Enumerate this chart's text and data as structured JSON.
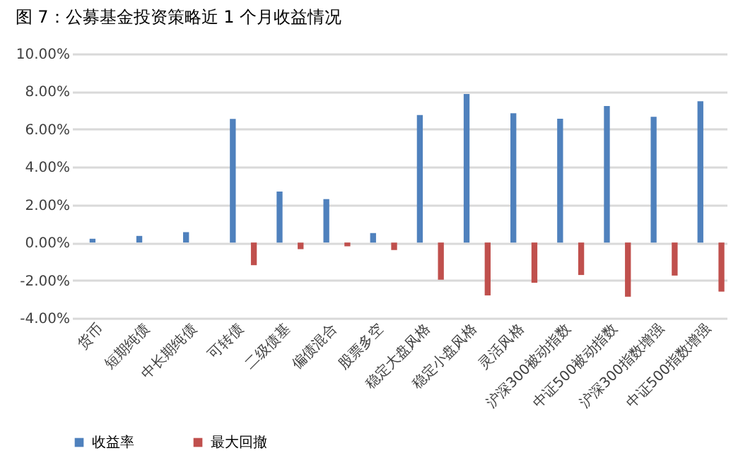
{
  "chart_data": {
    "type": "bar",
    "title": "图 7：公募基金投资策略近 1 个月收益情况",
    "categories": [
      "货币",
      "短期纯债",
      "中长期纯债",
      "可转债",
      "二级债基",
      "偏债混合",
      "股票多空",
      "稳定大盘风格",
      "稳定小盘风格",
      "灵活风格",
      "沪深300被动指数",
      "中证500被动指数",
      "沪深300指数增强",
      "中证500指数增强"
    ],
    "series": [
      {
        "name": "收益率",
        "color": "#4f81bd",
        "values": [
          0.2,
          0.35,
          0.55,
          6.55,
          2.7,
          2.3,
          0.5,
          6.75,
          7.87,
          6.85,
          6.56,
          7.23,
          6.66,
          7.48
        ]
      },
      {
        "name": "最大回撤",
        "color": "#c0504d",
        "values": [
          0,
          0,
          0,
          -1.2,
          -0.35,
          -0.2,
          -0.4,
          -1.97,
          -2.8,
          -2.13,
          -1.72,
          -2.87,
          -1.75,
          -2.6
        ]
      }
    ],
    "ylim": [
      -4,
      10
    ],
    "yticks": [
      {
        "value": -4,
        "label": "-4.00%"
      },
      {
        "value": -2,
        "label": "-2.00%"
      },
      {
        "value": 0,
        "label": "0.00%"
      },
      {
        "value": 2,
        "label": "2.00%"
      },
      {
        "value": 4,
        "label": "4.00%"
      },
      {
        "value": 6,
        "label": "6.00%"
      },
      {
        "value": 8,
        "label": "8.00%"
      },
      {
        "value": 10,
        "label": "10.00%"
      }
    ],
    "grid": "y",
    "legend": "bottom"
  }
}
